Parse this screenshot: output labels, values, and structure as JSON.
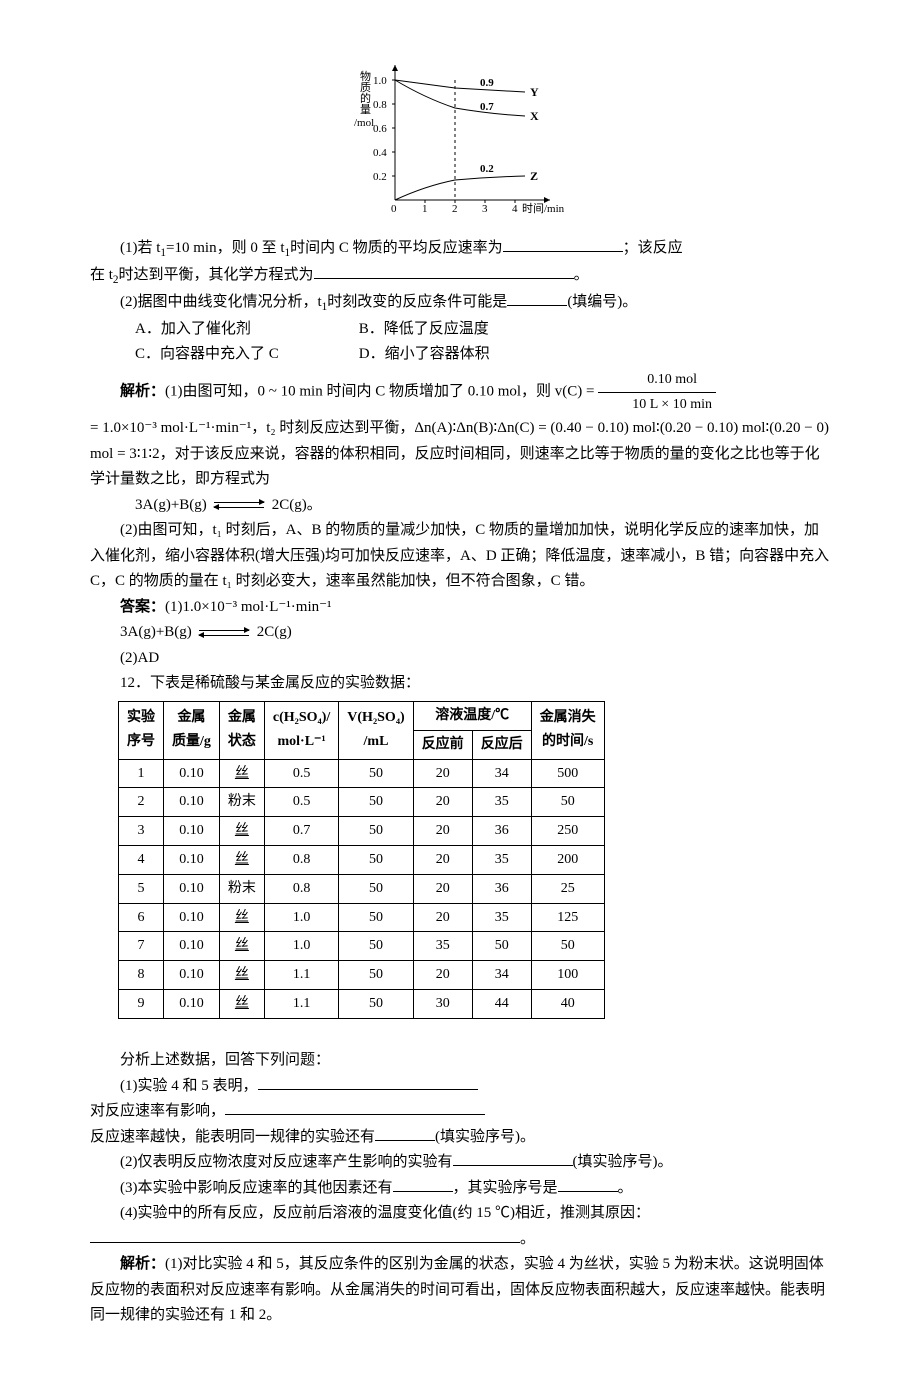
{
  "graph": {
    "y_label_lines": [
      "物",
      "质",
      "的",
      "量",
      "/mol"
    ],
    "y_ticks": [
      "1.0",
      "0.8",
      "0.6",
      "0.4",
      "0.2"
    ],
    "x_ticks": [
      "0",
      "1",
      "2",
      "3",
      "4"
    ],
    "x_label": "时间/min",
    "curve_Y_final_label": "0.9",
    "curve_X_final_label": "0.7",
    "curve_Z_final_label": "0.2",
    "series_Y": "Y",
    "series_X": "X",
    "series_Z": "Z",
    "axis_color": "#000000",
    "grid_dash_color": "#000000",
    "curve_color": "#000000",
    "fontsize_axis": 11,
    "fontsize_label": 11
  },
  "q11": {
    "p1_a": "(1)若 t",
    "p1_b": "=10 min，则 0 至 t",
    "p1_c": "时间内 C 物质的平均反应速率为",
    "p1_d": "；该反应",
    "p1_e": "在 t",
    "p1_f": "时达到平衡，其化学方程式为",
    "p1_g": "。",
    "p2_a": "(2)据图中曲线变化情况分析，t",
    "p2_b": "时刻改变的反应条件可能是",
    "p2_c": "(填编号)。",
    "optA": "A．加入了催化剂",
    "optB": "B．降低了反应温度",
    "optC": "C．向容器中充入了 C",
    "optD": "D．缩小了容器体积",
    "ans_label": "解析：",
    "ans1_a": "(1)由图可知，0 ~ 10 min 时间内 C 物质增加了 0.10 mol，则 v(C) = ",
    "frac_num": "0.10 mol",
    "frac_den": "10 L × 10 min",
    "ans1_b": "= 1.0×10⁻³ mol·L⁻¹·min⁻¹，t₂ 时刻反应达到平衡，Δn(A)∶Δn(B)∶Δn(C) = (0.40 − 0.10) mol∶(0.20 − 0.10) mol∶(0.20 − 0) mol = 3∶1∶2，对于该反应来说，容器的体积相同，反应时间相同，则速率之比等于物质的量的变化之比也等于化学计量数之比，即方程式为",
    "eqn1_lhs": "3A(g)+B(g)",
    "eqn1_rhs": "2C(g)。",
    "ans2": "(2)由图可知，t₁ 时刻后，A、B 的物质的量减少加快，C 物质的量增加加快，说明化学反应的速率加快，加入催化剂，缩小容器体积(增大压强)均可加快反应速率，A、D 正确；降低温度，速率减小，B 错；向容器中充入 C，C 的物质的量在 t₁ 时刻必变大，速率虽然能加快，但不符合图象，C 错。",
    "final_label": "答案：",
    "final1": "(1)1.0×10⁻³ mol·L⁻¹·min⁻¹",
    "final_eqn_lhs": "3A(g)+B(g)",
    "final_eqn_rhs": "2C(g)",
    "final2": "(2)AD"
  },
  "q12": {
    "intro": "12．下表是稀硫酸与某金属反应的实验数据：",
    "headers": {
      "seq1": "实验",
      "seq2": "序号",
      "mass1": "金属",
      "mass2": "质量/g",
      "state1": "金属",
      "state2": "状态",
      "conc": "c(H₂SO₄)/\nmol·L⁻¹",
      "conc1": "c(H₂SO₄)/",
      "conc2": "mol·L⁻¹",
      "vol": "V(H₂SO₄)\n/mL",
      "vol1": "V(H₂SO₄)",
      "vol2": "/mL",
      "temp": "溶液温度/℃",
      "temp_pre": "反应前",
      "temp_post": "反应后",
      "time1": "金属消失",
      "time2": "的时间/s"
    },
    "state_si": "丝",
    "state_powder": "粉末",
    "rows": [
      {
        "n": "1",
        "m": "0.10",
        "s": "丝",
        "c": "0.5",
        "v": "50",
        "t0": "20",
        "t1": "34",
        "time": "500"
      },
      {
        "n": "2",
        "m": "0.10",
        "s": "粉末",
        "c": "0.5",
        "v": "50",
        "t0": "20",
        "t1": "35",
        "time": "50"
      },
      {
        "n": "3",
        "m": "0.10",
        "s": "丝",
        "c": "0.7",
        "v": "50",
        "t0": "20",
        "t1": "36",
        "time": "250"
      },
      {
        "n": "4",
        "m": "0.10",
        "s": "丝",
        "c": "0.8",
        "v": "50",
        "t0": "20",
        "t1": "35",
        "time": "200"
      },
      {
        "n": "5",
        "m": "0.10",
        "s": "粉末",
        "c": "0.8",
        "v": "50",
        "t0": "20",
        "t1": "36",
        "time": "25"
      },
      {
        "n": "6",
        "m": "0.10",
        "s": "丝",
        "c": "1.0",
        "v": "50",
        "t0": "20",
        "t1": "35",
        "time": "125"
      },
      {
        "n": "7",
        "m": "0.10",
        "s": "丝",
        "c": "1.0",
        "v": "50",
        "t0": "35",
        "t1": "50",
        "time": "50"
      },
      {
        "n": "8",
        "m": "0.10",
        "s": "丝",
        "c": "1.1",
        "v": "50",
        "t0": "20",
        "t1": "34",
        "time": "100"
      },
      {
        "n": "9",
        "m": "0.10",
        "s": "丝",
        "c": "1.1",
        "v": "50",
        "t0": "30",
        "t1": "44",
        "time": "40"
      }
    ],
    "after": "分析上述数据，回答下列问题：",
    "p1a": "(1)实验 4 和 5 表明，",
    "p1b": "对反应速率有影响，",
    "p1c": "反应速率越快，能表明同一规律的实验还有",
    "p1d": "(填实验序号)。",
    "p2a": "(2)仅表明反应物浓度对反应速率产生影响的实验有",
    "p2b": "(填实验序号)。",
    "p3a": "(3)本实验中影响反应速率的其他因素还有",
    "p3b": "，其实验序号是",
    "p3c": "。",
    "p4": "(4)实验中的所有反应，反应前后溶液的温度变化值(约 15 ℃)相近，推测其原因：",
    "p4_end": "。",
    "ans_label": "解析：",
    "ans": "(1)对比实验 4 和 5，其反应条件的区别为金属的状态，实验 4 为丝状，实验 5 为粉末状。这说明固体反应物的表面积对反应速率有影响。从金属消失的时间可看出，固体反应物表面积越大，反应速率越快。能表明同一规律的实验还有 1 和 2。"
  }
}
